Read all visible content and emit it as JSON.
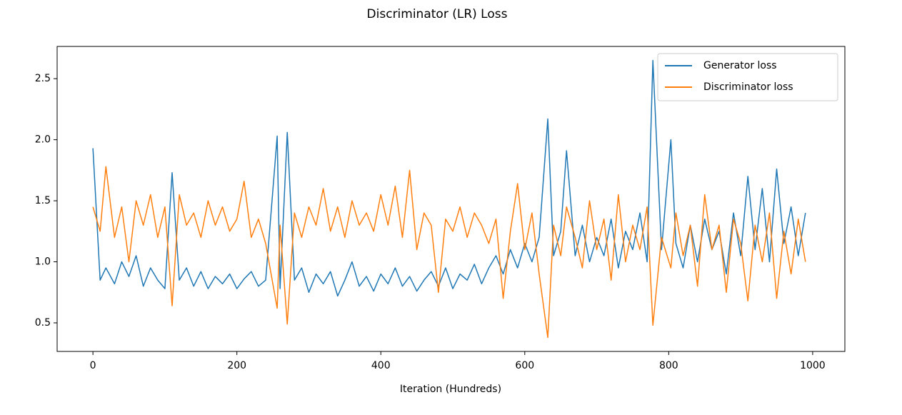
{
  "chart_data": {
    "type": "line",
    "title": "Discriminator (LR) Loss",
    "xlabel": "Iteration (Hundreds)",
    "x": [
      0,
      10,
      18,
      30,
      40,
      50,
      60,
      70,
      80,
      90,
      100,
      110,
      120,
      130,
      140,
      150,
      160,
      170,
      180,
      190,
      200,
      210,
      220,
      230,
      240,
      256,
      260,
      270,
      280,
      290,
      300,
      310,
      320,
      330,
      340,
      350,
      360,
      370,
      380,
      390,
      400,
      410,
      420,
      430,
      440,
      450,
      460,
      470,
      480,
      490,
      500,
      510,
      520,
      530,
      540,
      550,
      560,
      570,
      580,
      590,
      600,
      610,
      620,
      632,
      640,
      650,
      658,
      670,
      680,
      690,
      700,
      710,
      720,
      730,
      740,
      750,
      760,
      770,
      778,
      790,
      803,
      810,
      820,
      830,
      840,
      850,
      860,
      870,
      880,
      890,
      900,
      910,
      920,
      930,
      940,
      950,
      960,
      970,
      980,
      990
    ],
    "series": [
      {
        "name": "Generator loss",
        "color": "#1f77b4",
        "values": [
          1.93,
          0.85,
          0.95,
          0.82,
          1.0,
          0.88,
          1.05,
          0.8,
          0.95,
          0.85,
          0.78,
          1.73,
          0.85,
          0.95,
          0.8,
          0.92,
          0.78,
          0.88,
          0.82,
          0.9,
          0.78,
          0.86,
          0.92,
          0.8,
          0.85,
          2.03,
          0.78,
          2.06,
          0.85,
          0.95,
          0.75,
          0.9,
          0.82,
          0.92,
          0.72,
          0.85,
          1.0,
          0.8,
          0.88,
          0.76,
          0.9,
          0.82,
          0.95,
          0.8,
          0.88,
          0.76,
          0.85,
          0.92,
          0.8,
          0.95,
          0.78,
          0.9,
          0.85,
          0.98,
          0.82,
          0.95,
          1.05,
          0.9,
          1.1,
          0.95,
          1.15,
          1.0,
          1.2,
          2.17,
          1.05,
          1.25,
          1.91,
          1.05,
          1.3,
          1.0,
          1.2,
          1.05,
          1.35,
          0.95,
          1.25,
          1.1,
          1.4,
          1.0,
          2.65,
          1.1,
          2.0,
          1.15,
          0.95,
          1.3,
          1.0,
          1.35,
          1.1,
          1.25,
          0.9,
          1.4,
          1.05,
          1.7,
          1.1,
          1.6,
          1.0,
          1.76,
          1.15,
          1.45,
          1.05,
          1.4
        ]
      },
      {
        "name": "Discriminator loss",
        "color": "#ff7f0e",
        "values": [
          1.45,
          1.25,
          1.78,
          1.2,
          1.45,
          1.0,
          1.5,
          1.3,
          1.55,
          1.2,
          1.45,
          0.64,
          1.55,
          1.3,
          1.4,
          1.2,
          1.5,
          1.3,
          1.45,
          1.25,
          1.35,
          1.66,
          1.2,
          1.35,
          1.15,
          0.62,
          1.3,
          0.49,
          1.4,
          1.2,
          1.45,
          1.3,
          1.6,
          1.25,
          1.45,
          1.2,
          1.5,
          1.3,
          1.4,
          1.25,
          1.55,
          1.3,
          1.62,
          1.2,
          1.75,
          1.1,
          1.4,
          1.3,
          0.75,
          1.35,
          1.25,
          1.45,
          1.2,
          1.4,
          1.3,
          1.15,
          1.35,
          0.7,
          1.25,
          1.64,
          1.1,
          1.4,
          0.9,
          0.38,
          1.3,
          1.05,
          1.45,
          1.2,
          0.95,
          1.5,
          1.1,
          1.35,
          0.85,
          1.55,
          1.0,
          1.3,
          1.1,
          1.45,
          0.48,
          1.2,
          0.95,
          1.4,
          1.05,
          1.3,
          0.8,
          1.55,
          1.1,
          1.3,
          0.75,
          1.35,
          1.15,
          0.68,
          1.3,
          1.0,
          1.4,
          0.7,
          1.25,
          0.9,
          1.35,
          1.0
        ]
      }
    ],
    "xlim": [
      -49.75,
      1044.75
    ],
    "xticks": [
      0,
      200,
      400,
      600,
      800,
      1000
    ],
    "ylim": [
      0.266,
      2.764
    ],
    "yticks": [
      0.5,
      {
        "value": 1.0,
        "label": "1.0"
      },
      1.5,
      {
        "value": 2.0,
        "label": "2.0"
      },
      2.5
    ],
    "legend": "upper right"
  }
}
